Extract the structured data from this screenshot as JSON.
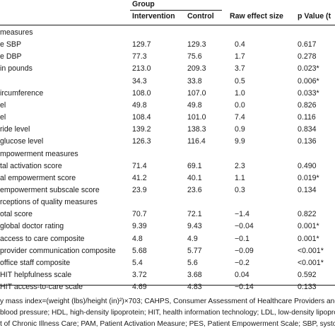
{
  "header": {
    "group": "Group",
    "intervention": "Intervention",
    "control": "Control",
    "raw_effect": "Raw effect size",
    "p_value": "p Value (t"
  },
  "rows": [
    {
      "label": "measures",
      "int": "",
      "ctl": "",
      "eff": "",
      "p": ""
    },
    {
      "label": "e SBP",
      "int": "129.7",
      "ctl": "129.3",
      "eff": "0.4",
      "p": "0.617"
    },
    {
      "label": "e DBP",
      "int": "77.3",
      "ctl": "75.6",
      "eff": "1.7",
      "p": "0.278"
    },
    {
      "label": "in pounds",
      "int": "213.0",
      "ctl": "209.3",
      "eff": "3.7",
      "p": "0.023*"
    },
    {
      "label": "",
      "int": "34.3",
      "ctl": "33.8",
      "eff": "0.5",
      "p": "0.006*"
    },
    {
      "label": "ircumference",
      "int": "108.0",
      "ctl": "107.0",
      "eff": "1.0",
      "p": "0.033*"
    },
    {
      "label": "el",
      "int": "49.8",
      "ctl": "49.8",
      "eff": "0.0",
      "p": "0.826"
    },
    {
      "label": "el",
      "int": "108.4",
      "ctl": "101.0",
      "eff": "7.4",
      "p": "0.116"
    },
    {
      "label": "ride level",
      "int": "139.2",
      "ctl": "138.3",
      "eff": "0.9",
      "p": "0.834"
    },
    {
      "label": "glucose level",
      "int": "126.3",
      "ctl": "116.4",
      "eff": "9.9",
      "p": "0.136"
    },
    {
      "label": "mpowerment measures",
      "int": "",
      "ctl": "",
      "eff": "",
      "p": ""
    },
    {
      "label": "tal activation score",
      "int": "71.4",
      "ctl": "69.1",
      "eff": "2.3",
      "p": "0.490"
    },
    {
      "label": "al empowerment score",
      "int": "41.2",
      "ctl": "40.1",
      "eff": "1.1",
      "p": "0.019*"
    },
    {
      "label": "empowerment subscale score",
      "int": "23.9",
      "ctl": "23.6",
      "eff": "0.3",
      "p": "0.134"
    },
    {
      "label": "rceptions of quality measures",
      "int": "",
      "ctl": "",
      "eff": "",
      "p": ""
    },
    {
      "label": "otal score",
      "int": "70.7",
      "ctl": "72.1",
      "eff": "−1.4",
      "p": "0.822"
    },
    {
      "label": "global doctor rating",
      "int": "9.39",
      "ctl": "9.43",
      "eff": "−0.04",
      "p": "0.001*"
    },
    {
      "label": "access to care composite",
      "int": "4.8",
      "ctl": "4.9",
      "eff": "−0.1",
      "p": "0.001*"
    },
    {
      "label": "provider communication composite",
      "int": "5.68",
      "ctl": "5.77",
      "eff": "−0.09",
      "p": "<0.001*"
    },
    {
      "label": "office staff composite",
      "int": "5.4",
      "ctl": "5.6",
      "eff": "−0.2",
      "p": "<0.001*"
    },
    {
      "label": "HIT helpfulness scale",
      "int": "3.72",
      "ctl": "3.68",
      "eff": "0.04",
      "p": "0.592"
    },
    {
      "label": "HIT access-to-care scale",
      "int": "4.69",
      "ctl": "4.83",
      "eff": "−0.14",
      "p": "0.133"
    }
  ],
  "footnotes": [
    "y mass index=(weight (lbs)/height (in)²)×703; CAHPS, Consumer Assessment of Healthcare Providers and Sys",
    "blood pressure; HDL, high-density lipoprotein; HIT, health information technology; LDL, low-density lipoprotein; I",
    "t of Chronic Illness Care; PAM, Patient Activation Measure; PES, Patient Empowerment Scale; SBP, systolic"
  ]
}
